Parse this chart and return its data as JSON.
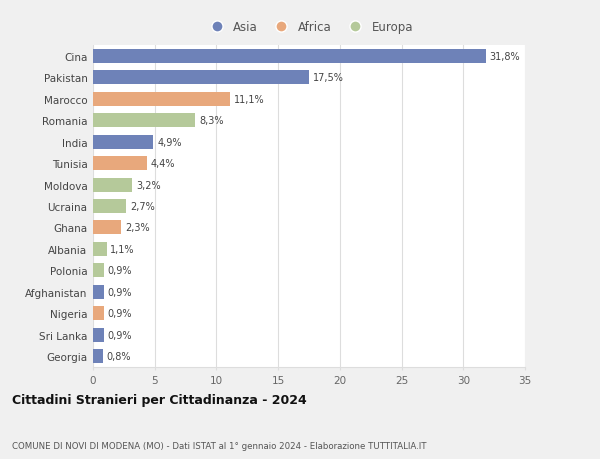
{
  "categories": [
    "Cina",
    "Pakistan",
    "Marocco",
    "Romania",
    "India",
    "Tunisia",
    "Moldova",
    "Ucraina",
    "Ghana",
    "Albania",
    "Polonia",
    "Afghanistan",
    "Nigeria",
    "Sri Lanka",
    "Georgia"
  ],
  "values": [
    31.8,
    17.5,
    11.1,
    8.3,
    4.9,
    4.4,
    3.2,
    2.7,
    2.3,
    1.1,
    0.9,
    0.9,
    0.9,
    0.9,
    0.8
  ],
  "labels": [
    "31,8%",
    "17,5%",
    "11,1%",
    "8,3%",
    "4,9%",
    "4,4%",
    "3,2%",
    "2,7%",
    "2,3%",
    "1,1%",
    "0,9%",
    "0,9%",
    "0,9%",
    "0,9%",
    "0,8%"
  ],
  "continents": [
    "Asia",
    "Asia",
    "Africa",
    "Europa",
    "Asia",
    "Africa",
    "Europa",
    "Europa",
    "Africa",
    "Europa",
    "Europa",
    "Asia",
    "Africa",
    "Asia",
    "Asia"
  ],
  "colors": {
    "Asia": "#6e82b8",
    "Africa": "#e8a87c",
    "Europa": "#b5c99a"
  },
  "title": "Cittadini Stranieri per Cittadinanza - 2024",
  "subtitle": "COMUNE DI NOVI DI MODENA (MO) - Dati ISTAT al 1° gennaio 2024 - Elaborazione TUTTITALIA.IT",
  "xlim": [
    0,
    35
  ],
  "xticks": [
    0,
    5,
    10,
    15,
    20,
    25,
    30,
    35
  ],
  "fig_bg": "#f0f0f0",
  "plot_bg": "#ffffff",
  "grid_color": "#dddddd",
  "bar_height": 0.65
}
